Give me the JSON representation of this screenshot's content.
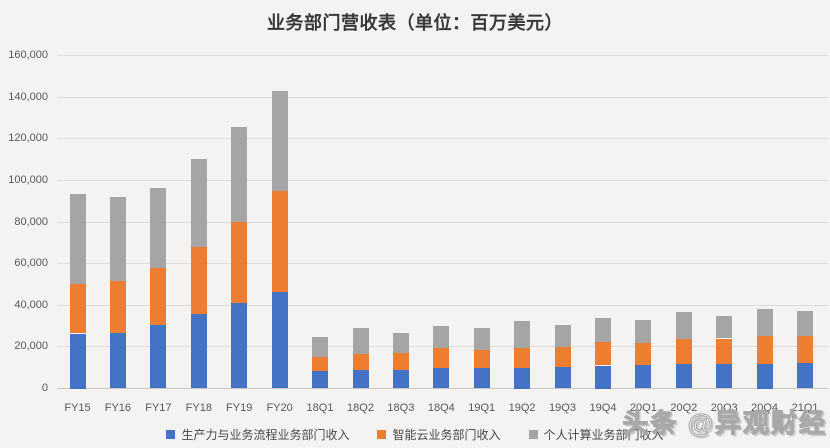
{
  "watermark": "头条 @异观财经",
  "chart_data": {
    "type": "bar",
    "stacked": true,
    "title": "业务部门营收表（单位：百万美元）",
    "xlabel": "",
    "ylabel": "",
    "ylim": [
      0,
      160000
    ],
    "ytick_step": 20000,
    "ytick_labels": [
      "0",
      "20,000",
      "40,000",
      "60,000",
      "80,000",
      "100,000",
      "120,000",
      "140,000",
      "160,000"
    ],
    "grid": true,
    "legend_position": "bottom",
    "categories": [
      "FY15",
      "FY16",
      "FY17",
      "FY18",
      "FY19",
      "FY20",
      "18Q1",
      "18Q2",
      "18Q3",
      "18Q4",
      "19Q1",
      "19Q2",
      "19Q3",
      "19Q4",
      "20Q1",
      "20Q2",
      "20Q3",
      "20Q4",
      "21Q1"
    ],
    "series": [
      {
        "name": "生产力与业务流程业务部门收入",
        "color": "#4472C4",
        "values": [
          26430,
          26487,
          30444,
          35865,
          41160,
          46398,
          8238,
          8953,
          9055,
          9668,
          9771,
          10100,
          10242,
          11047,
          11077,
          11827,
          11743,
          11752,
          12319
        ]
      },
      {
        "name": "智能云业务部门收入",
        "color": "#ED7D31",
        "values": [
          23715,
          25042,
          27440,
          32219,
          38985,
          48366,
          6922,
          7795,
          7896,
          9606,
          8567,
          9378,
          9649,
          11391,
          10845,
          11870,
          12281,
          13371,
          12986
        ]
      },
      {
        "name": "个人计算业务部门收入",
        "color": "#A5A5A5",
        "values": [
          43160,
          40460,
          38687,
          42276,
          45698,
          48251,
          9379,
          12170,
          9917,
          10811,
          10746,
          12994,
          10680,
          11279,
          11133,
          13212,
          10995,
          12905,
          11849
        ]
      }
    ]
  }
}
